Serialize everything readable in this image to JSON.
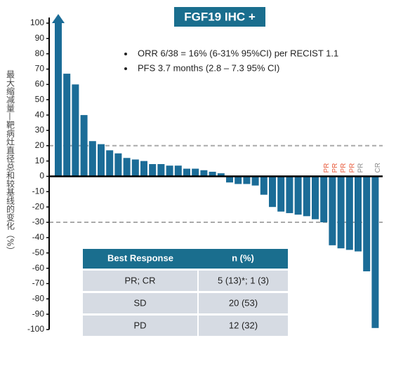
{
  "chart_data": {
    "type": "bar",
    "title": "FGF19 IHC +",
    "notes": [
      "ORR 6/38 = 16% (6-31% 95%CI) per RECIST 1.1",
      "PFS 3.7 months (2.8 – 7.3 95% CI)"
    ],
    "ylabel": "最大缩减量—靶病灶直径总和较基线的变化（%）",
    "categories": [
      null,
      null,
      null,
      null,
      null,
      null,
      null,
      null,
      null,
      null,
      null,
      null,
      null,
      null,
      null,
      null,
      null,
      null,
      null,
      null,
      null,
      null,
      null,
      null,
      null,
      null,
      null,
      null,
      null,
      null,
      null,
      "PR",
      "PR",
      "PR",
      "PR",
      "PR",
      null,
      "CR"
    ],
    "category_colors": [
      null,
      null,
      null,
      null,
      null,
      null,
      null,
      null,
      null,
      null,
      null,
      null,
      null,
      null,
      null,
      null,
      null,
      null,
      null,
      null,
      null,
      null,
      null,
      null,
      null,
      null,
      null,
      null,
      null,
      null,
      null,
      "#e8593a",
      "#e8593a",
      "#e8593a",
      "#e8593a",
      "#8a8a8a",
      null,
      "#8a8a8a"
    ],
    "values": [
      100,
      67,
      60,
      40,
      23,
      21,
      17,
      15,
      12,
      11,
      10,
      8,
      8,
      7,
      7,
      5,
      5,
      4,
      3,
      2,
      -4,
      -5,
      -5,
      -6,
      -12,
      -20,
      -23,
      -24,
      -25,
      -26,
      -28,
      -30,
      -45,
      -47,
      -48,
      -49,
      -62,
      -99
    ],
    "color": "#1b6c97",
    "ylim": [
      -100,
      100
    ],
    "yticks": [
      -100,
      -90,
      -80,
      -70,
      -60,
      -50,
      -40,
      -30,
      -20,
      -10,
      0,
      10,
      20,
      30,
      40,
      50,
      60,
      70,
      80,
      90,
      100
    ],
    "reference_lines": [
      20,
      -30
    ],
    "table": {
      "columns": [
        "Best Response",
        "n (%)"
      ],
      "rows": [
        [
          "PR; CR",
          "5 (13)*; 1 (3)"
        ],
        [
          "SD",
          "20 (53)"
        ],
        [
          "PD",
          "12 (32)"
        ]
      ]
    }
  }
}
